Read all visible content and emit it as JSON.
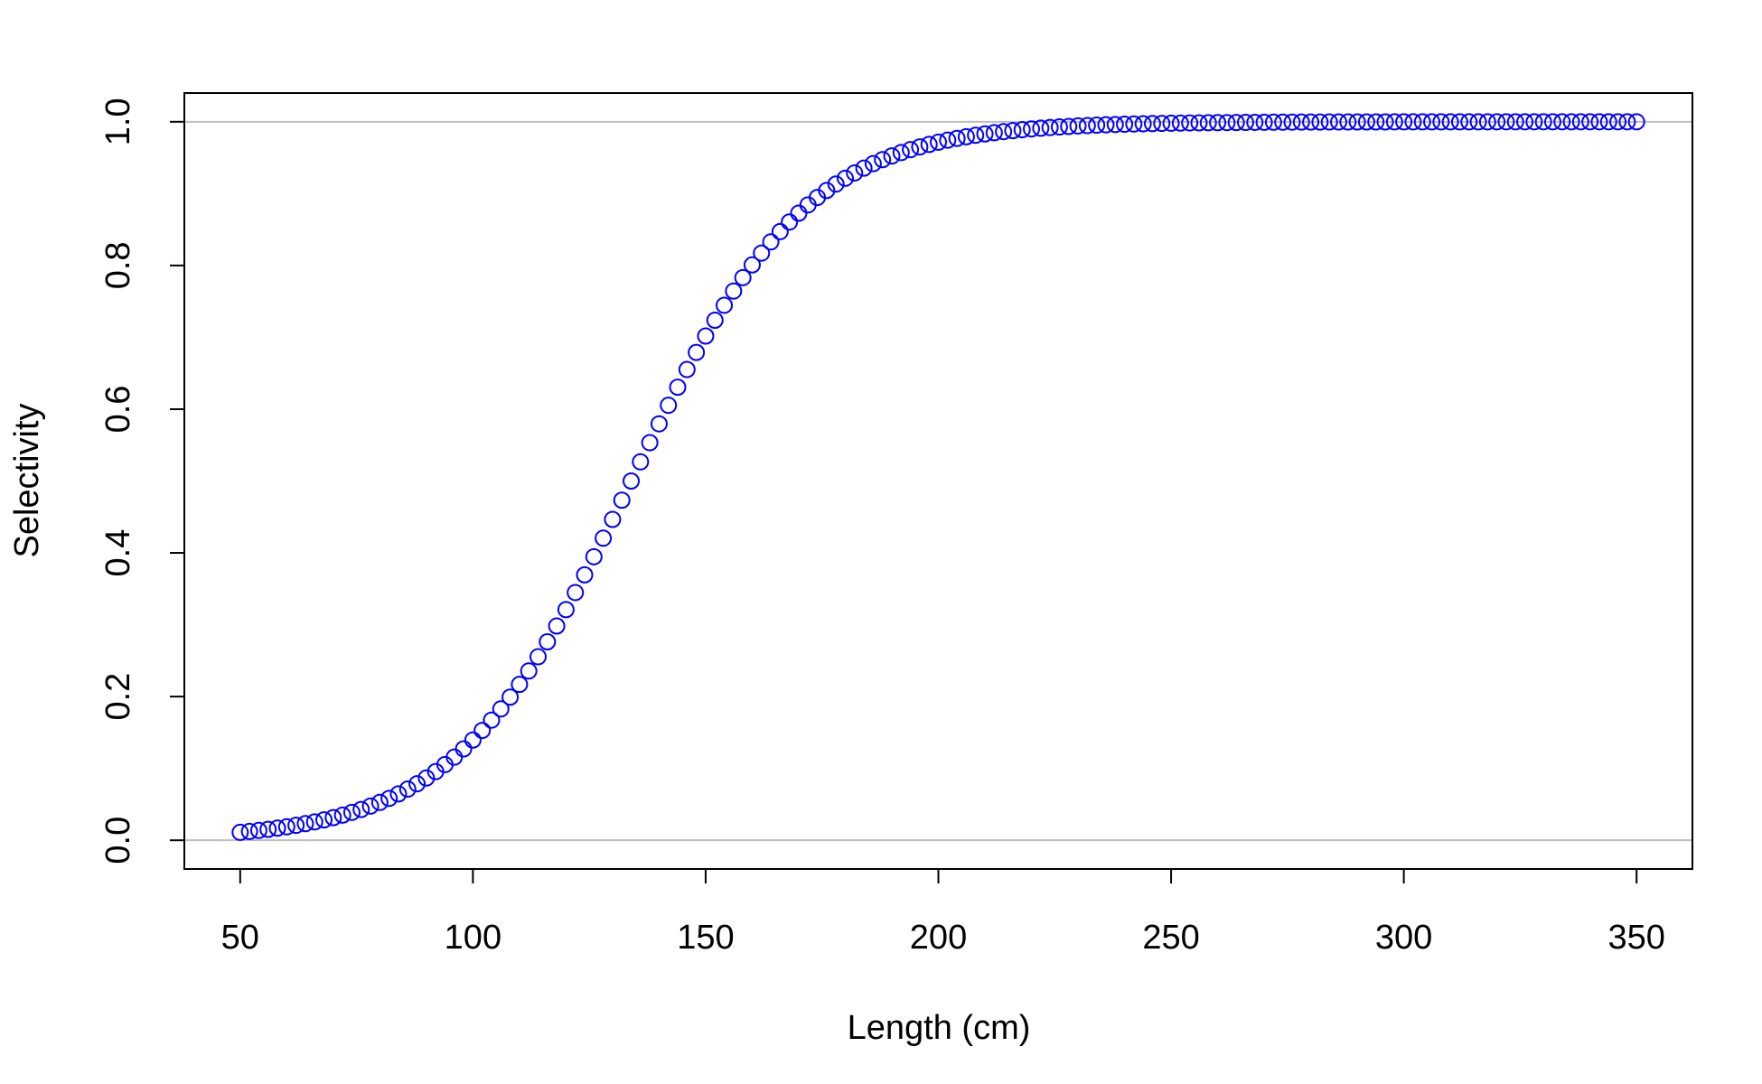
{
  "chart_data": {
    "type": "scatter",
    "xlabel": "Length (cm)",
    "ylabel": "Selectivity",
    "xlim": [
      38,
      362
    ],
    "ylim": [
      -0.04,
      1.04
    ],
    "xticks": [
      50,
      100,
      150,
      200,
      250,
      300,
      350
    ],
    "yticks": [
      {
        "value": 0,
        "label": "0.0"
      },
      0.2,
      0.4,
      0.6,
      0.8,
      {
        "value": 1,
        "label": "1.0"
      }
    ],
    "hlines": [
      0,
      1
    ],
    "hline_color": "#bebebe",
    "series": [
      {
        "color": "#0000ff",
        "x": [
          50,
          52,
          54,
          56,
          58,
          60,
          62,
          64,
          66,
          68,
          70,
          72,
          74,
          76,
          78,
          80,
          82,
          84,
          86,
          88,
          90,
          92,
          94,
          96,
          98,
          100,
          102,
          104,
          106,
          108,
          110,
          112,
          114,
          116,
          118,
          120,
          122,
          124,
          126,
          128,
          130,
          132,
          134,
          136,
          138,
          140,
          142,
          144,
          146,
          148,
          150,
          152,
          154,
          156,
          158,
          160,
          162,
          164,
          166,
          168,
          170,
          172,
          174,
          176,
          178,
          180,
          182,
          184,
          186,
          188,
          190,
          192,
          194,
          196,
          198,
          200,
          202,
          204,
          206,
          208,
          210,
          212,
          214,
          216,
          218,
          220,
          222,
          224,
          226,
          228,
          230,
          232,
          234,
          236,
          238,
          240,
          242,
          244,
          246,
          248,
          250,
          252,
          254,
          256,
          258,
          260,
          262,
          264,
          266,
          268,
          270,
          272,
          274,
          276,
          278,
          280,
          282,
          284,
          286,
          288,
          290,
          292,
          294,
          296,
          298,
          300,
          302,
          304,
          306,
          308,
          310,
          312,
          314,
          316,
          318,
          320,
          322,
          324,
          326,
          328,
          330,
          332,
          334,
          336,
          338,
          340,
          342,
          344,
          346,
          348,
          350
        ],
        "values": [
          0.011,
          0.0123,
          0.0137,
          0.0152,
          0.0169,
          0.0187,
          0.0208,
          0.0231,
          0.0256,
          0.0284,
          0.0315,
          0.035,
          0.0388,
          0.0429,
          0.0476,
          0.0527,
          0.0583,
          0.0645,
          0.0712,
          0.0786,
          0.0867,
          0.0956,
          0.1053,
          0.1157,
          0.1272,
          0.1395,
          0.1529,
          0.1672,
          0.1828,
          0.1992,
          0.2169,
          0.2356,
          0.2554,
          0.2762,
          0.2982,
          0.321,
          0.3448,
          0.3694,
          0.3946,
          0.4204,
          0.4466,
          0.4733,
          0.5,
          0.5267,
          0.5534,
          0.5796,
          0.6054,
          0.6306,
          0.6552,
          0.679,
          0.7018,
          0.7238,
          0.7446,
          0.7644,
          0.7831,
          0.8008,
          0.8172,
          0.8328,
          0.8471,
          0.8605,
          0.8728,
          0.8843,
          0.8947,
          0.9044,
          0.9133,
          0.9214,
          0.9288,
          0.9355,
          0.9417,
          0.9473,
          0.9524,
          0.9571,
          0.9612,
          0.965,
          0.9685,
          0.9716,
          0.9744,
          0.9769,
          0.9792,
          0.9813,
          0.9831,
          0.9848,
          0.9863,
          0.9877,
          0.989,
          0.9901,
          0.9911,
          0.992,
          0.9928,
          0.9935,
          0.9942,
          0.9947,
          0.9953,
          0.9958,
          0.9962,
          0.9966,
          0.9969,
          0.9972,
          0.9975,
          0.9978,
          0.998,
          0.9982,
          0.9984,
          0.9985,
          0.9987,
          0.9988,
          0.9989,
          0.999,
          0.9991,
          0.9992,
          0.9993,
          0.9994,
          0.9994,
          0.9995,
          0.9996,
          0.9996,
          0.9996,
          0.9997,
          0.9997,
          0.9997,
          0.9998,
          0.9998,
          0.9998,
          0.9998,
          0.9999,
          0.9999,
          0.9999,
          0.9999,
          0.9999,
          0.9999,
          0.9999,
          0.9999,
          0.9999,
          0.9999,
          0.9999,
          1,
          1,
          1,
          1,
          1,
          1,
          1,
          1,
          1,
          1,
          1,
          1,
          1,
          1,
          1,
          1
        ]
      }
    ]
  }
}
